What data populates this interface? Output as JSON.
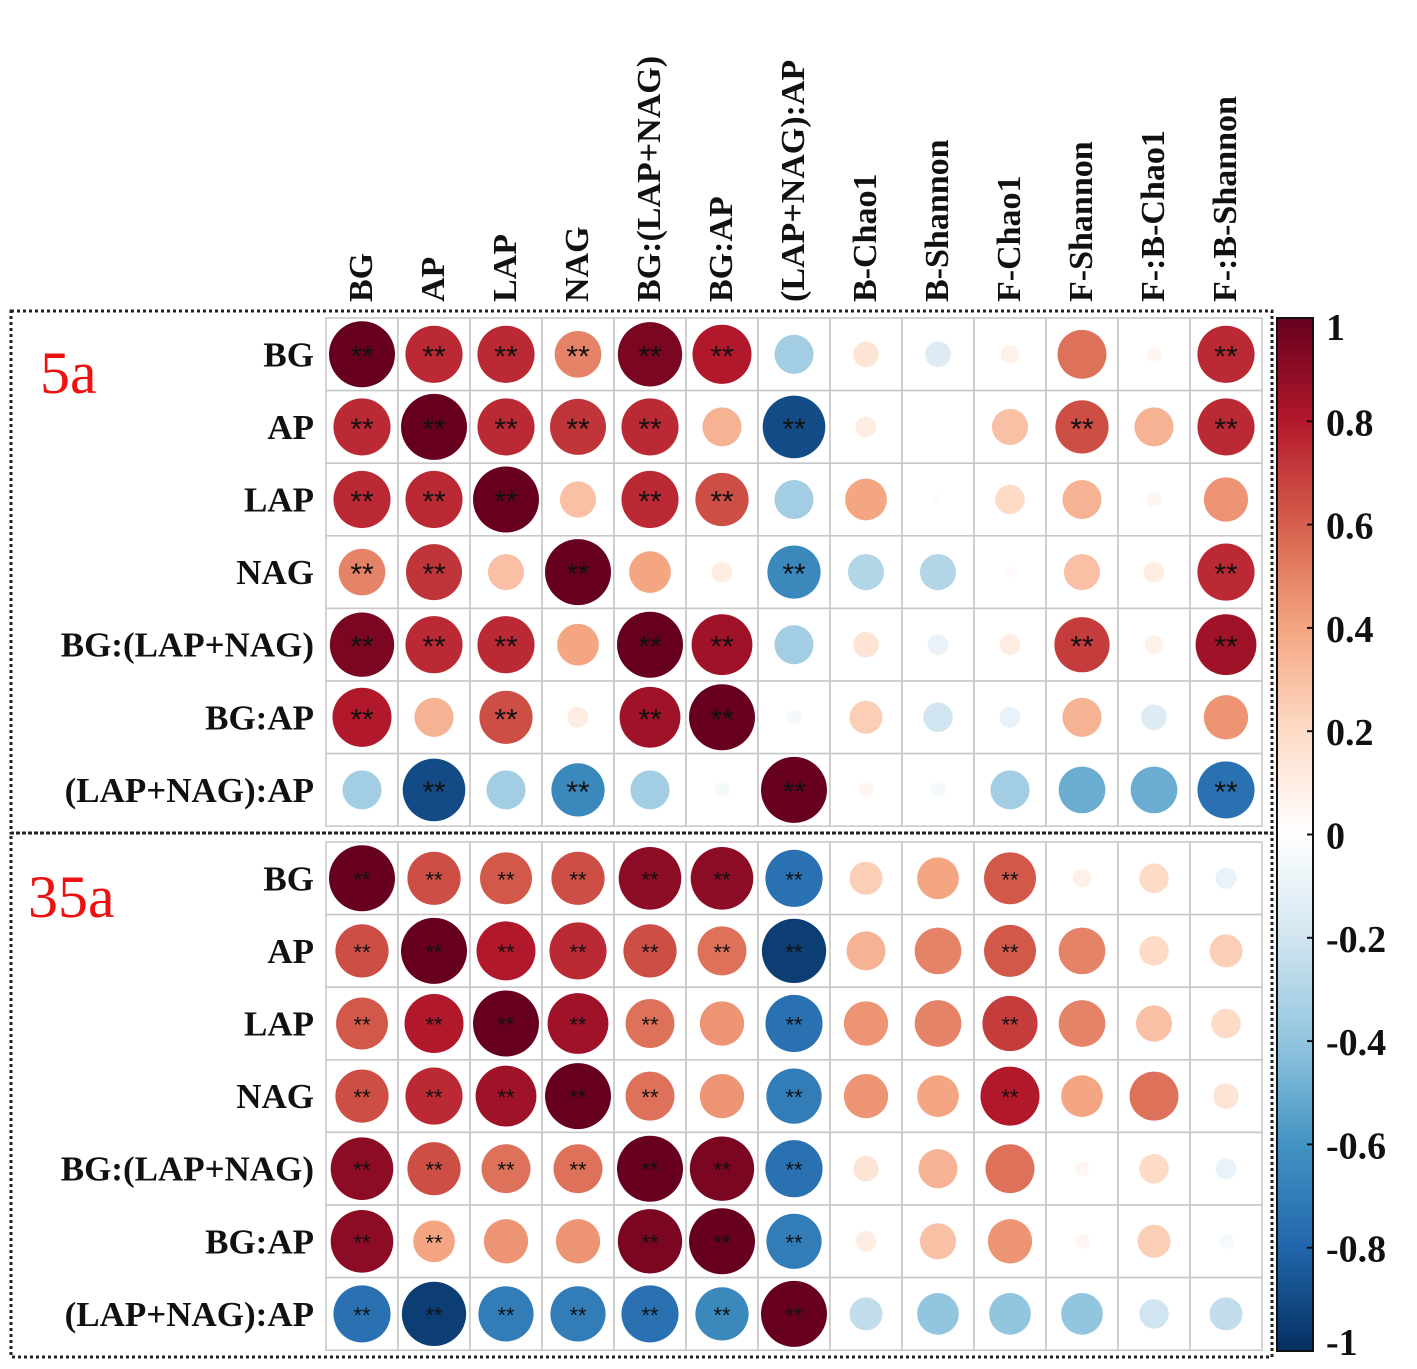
{
  "chart_data": {
    "type": "correlation-matrix",
    "columns": [
      "BG",
      "AP",
      "LAP",
      "NAG",
      "BG:(LAP+NAG)",
      "BG:AP",
      "(LAP+NAG):AP",
      "B-Chao1",
      "B-Shannon",
      "F-Chao1",
      "F-Shannon",
      "F-:B-Chao1",
      "F-:B-Shannon"
    ],
    "rows": [
      "BG",
      "AP",
      "LAP",
      "NAG",
      "BG:(LAP+NAG)",
      "BG:AP",
      "(LAP+NAG):AP"
    ],
    "colorbar": {
      "range": [
        -1,
        1
      ],
      "ticks": [
        "1",
        "0.8",
        "0.6",
        "0.4",
        "0.2",
        "0",
        "-0.2",
        "-0.4",
        "-0.6",
        "-0.8",
        "-1"
      ],
      "tick_values": [
        1,
        0.8,
        0.6,
        0.4,
        0.2,
        0,
        -0.2,
        -0.4,
        -0.6,
        -0.8,
        -1
      ],
      "colors": [
        "#67001f",
        "#b2182b",
        "#d6604d",
        "#f4a582",
        "#fddbc7",
        "#ffffff",
        "#d1e5f0",
        "#92c5de",
        "#4393c3",
        "#2166ac",
        "#053061"
      ]
    },
    "significance_label": "**",
    "panels": [
      {
        "label": "5a",
        "values": [
          [
            1.0,
            0.75,
            0.75,
            0.5,
            0.95,
            0.8,
            -0.35,
            0.15,
            -0.15,
            0.08,
            0.55,
            0.05,
            0.75
          ],
          [
            0.75,
            1.0,
            0.75,
            0.72,
            0.75,
            0.35,
            -0.9,
            0.1,
            0.0,
            0.3,
            0.65,
            0.35,
            0.75
          ],
          [
            0.75,
            0.75,
            1.0,
            0.3,
            0.75,
            0.65,
            -0.35,
            0.4,
            0.02,
            0.2,
            0.35,
            0.05,
            0.45
          ],
          [
            0.5,
            0.72,
            0.3,
            1.0,
            0.4,
            0.1,
            -0.65,
            -0.3,
            -0.3,
            0.03,
            0.3,
            0.1,
            0.75
          ],
          [
            0.95,
            0.75,
            0.75,
            0.4,
            1.0,
            0.85,
            -0.35,
            0.15,
            -0.1,
            0.1,
            0.7,
            0.08,
            0.85
          ],
          [
            0.8,
            0.35,
            0.65,
            0.1,
            0.85,
            1.0,
            -0.05,
            0.25,
            -0.2,
            -0.1,
            0.35,
            -0.15,
            0.45
          ],
          [
            -0.35,
            -0.9,
            -0.35,
            -0.65,
            -0.35,
            -0.05,
            1.0,
            0.05,
            -0.05,
            -0.35,
            -0.5,
            -0.5,
            -0.75
          ]
        ],
        "significant": [
          [
            1,
            1,
            1,
            1,
            1,
            1,
            0,
            0,
            0,
            0,
            0,
            0,
            1
          ],
          [
            1,
            1,
            1,
            1,
            1,
            0,
            1,
            0,
            0,
            0,
            1,
            0,
            1
          ],
          [
            1,
            1,
            1,
            0,
            1,
            1,
            0,
            0,
            0,
            0,
            0,
            0,
            0
          ],
          [
            1,
            1,
            0,
            1,
            0,
            0,
            1,
            0,
            0,
            0,
            0,
            0,
            1
          ],
          [
            1,
            1,
            1,
            0,
            1,
            1,
            0,
            0,
            0,
            0,
            1,
            0,
            1
          ],
          [
            1,
            0,
            1,
            0,
            1,
            1,
            0,
            0,
            0,
            0,
            0,
            0,
            0
          ],
          [
            0,
            1,
            0,
            1,
            0,
            0,
            1,
            0,
            0,
            0,
            0,
            0,
            1
          ]
        ]
      },
      {
        "label": "35a",
        "values": [
          [
            1.0,
            0.65,
            0.62,
            0.65,
            0.9,
            0.9,
            -0.75,
            0.25,
            0.4,
            0.62,
            0.08,
            0.2,
            -0.1
          ],
          [
            0.65,
            1.0,
            0.8,
            0.75,
            0.65,
            0.55,
            -0.95,
            0.35,
            0.5,
            0.62,
            0.5,
            0.2,
            0.25
          ],
          [
            0.62,
            0.8,
            1.0,
            0.85,
            0.55,
            0.45,
            -0.75,
            0.45,
            0.5,
            0.7,
            0.5,
            0.3,
            0.2
          ],
          [
            0.65,
            0.75,
            0.85,
            1.0,
            0.55,
            0.45,
            -0.7,
            0.45,
            0.4,
            0.8,
            0.4,
            0.55,
            0.15
          ],
          [
            0.9,
            0.65,
            0.55,
            0.55,
            1.0,
            0.95,
            -0.75,
            0.15,
            0.35,
            0.55,
            0.05,
            0.2,
            -0.1
          ],
          [
            0.9,
            0.4,
            0.45,
            0.45,
            0.95,
            1.0,
            -0.7,
            0.1,
            0.3,
            0.45,
            0.05,
            0.25,
            -0.05
          ],
          [
            -0.75,
            -0.95,
            -0.7,
            -0.7,
            -0.75,
            -0.65,
            1.0,
            -0.25,
            -0.4,
            -0.4,
            -0.4,
            -0.2,
            -0.25
          ]
        ],
        "significant": [
          [
            1,
            1,
            1,
            1,
            1,
            1,
            1,
            0,
            0,
            1,
            0,
            0,
            0
          ],
          [
            1,
            1,
            1,
            1,
            1,
            1,
            1,
            0,
            0,
            1,
            0,
            0,
            0
          ],
          [
            1,
            1,
            1,
            1,
            1,
            0,
            1,
            0,
            0,
            1,
            0,
            0,
            0
          ],
          [
            1,
            1,
            1,
            1,
            1,
            0,
            1,
            0,
            0,
            1,
            0,
            0,
            0
          ],
          [
            1,
            1,
            1,
            1,
            1,
            1,
            1,
            0,
            0,
            0,
            0,
            0,
            0
          ],
          [
            1,
            1,
            0,
            0,
            1,
            1,
            1,
            0,
            0,
            0,
            0,
            0,
            0
          ],
          [
            1,
            1,
            1,
            1,
            1,
            1,
            1,
            0,
            0,
            0,
            0,
            0,
            0
          ]
        ]
      }
    ]
  }
}
